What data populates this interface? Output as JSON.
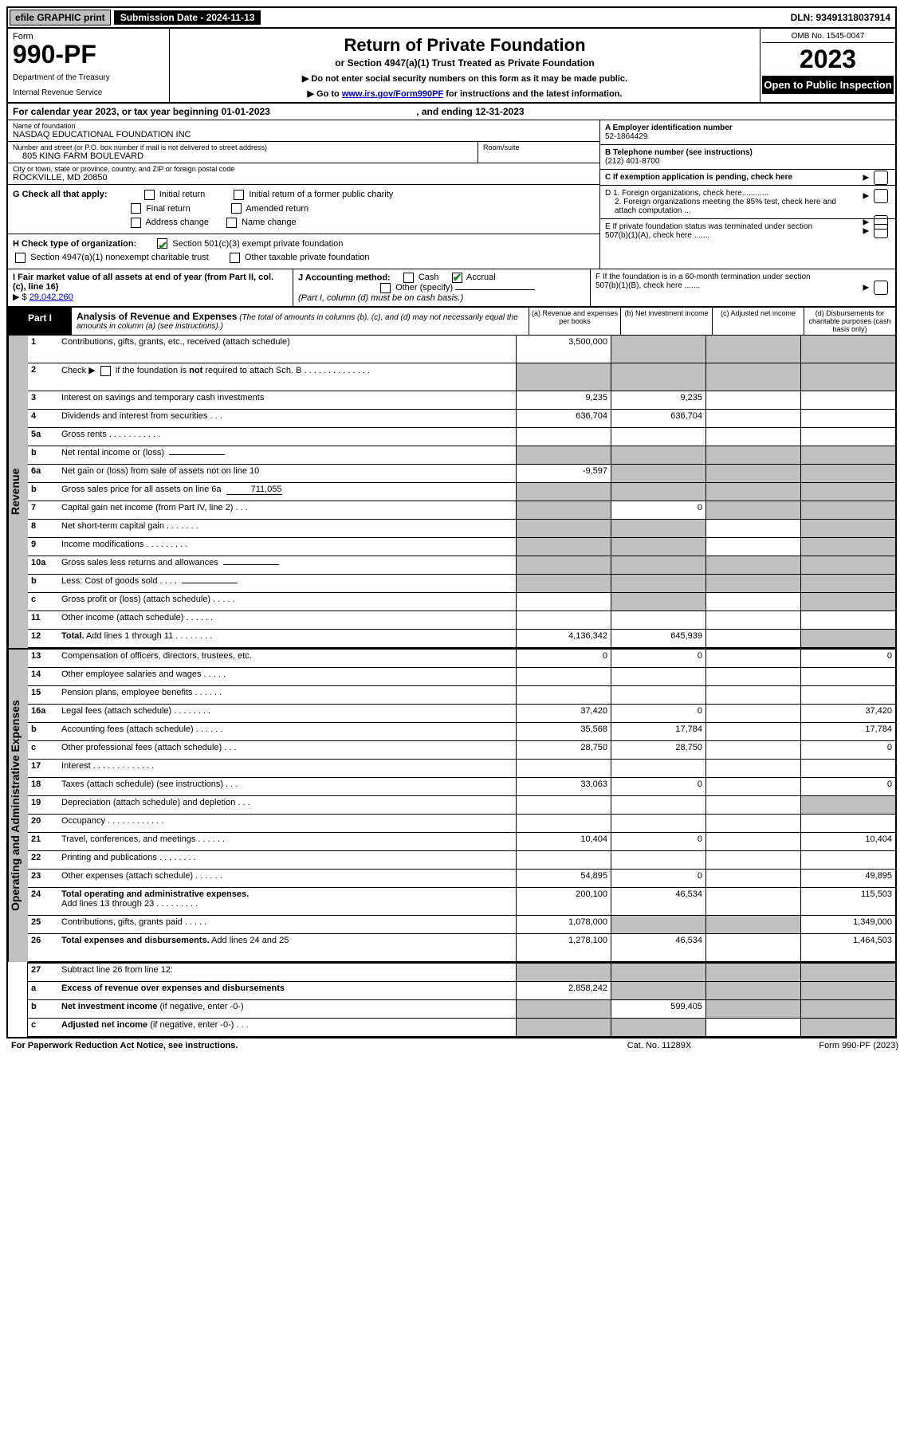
{
  "topbar": {
    "efile": "efile GRAPHIC print",
    "submission_label": "Submission Date - 2024-11-13",
    "dln": "DLN: 93491318037914"
  },
  "header": {
    "form_label": "Form",
    "form_number": "990-PF",
    "dept1": "Department of the Treasury",
    "dept2": "Internal Revenue Service",
    "title": "Return of Private Foundation",
    "subtitle": "or Section 4947(a)(1) Trust Treated as Private Foundation",
    "note1": "▶ Do not enter social security numbers on this form as it may be made public.",
    "note2_pre": "▶ Go to ",
    "note2_link": "www.irs.gov/Form990PF",
    "note2_post": " for instructions and the latest information.",
    "omb": "OMB No. 1545-0047",
    "year": "2023",
    "open": "Open to Public Inspection"
  },
  "calendar": {
    "pre": "For calendar year 2023, or tax year beginning ",
    "begin": "01-01-2023",
    "mid": ", and ending ",
    "end": "12-31-2023"
  },
  "info": {
    "name_label": "Name of foundation",
    "name": "NASDAQ EDUCATIONAL FOUNDATION INC",
    "addr_label": "Number and street (or P.O. box number if mail is not delivered to street address)",
    "addr": "805 KING FARM BOULEVARD",
    "room_label": "Room/suite",
    "room": "",
    "city_label": "City or town, state or province, country, and ZIP or foreign postal code",
    "city": "ROCKVILLE, MD  20850",
    "a_label": "A Employer identification number",
    "a_val": "52-1864429",
    "b_label": "B Telephone number (see instructions)",
    "b_val": "(212) 401-8700",
    "c_label": "C If exemption application is pending, check here",
    "d1": "D 1. Foreign organizations, check here............",
    "d2": "2. Foreign organizations meeting the 85% test, check here and attach computation ...",
    "e": "E  If private foundation status was terminated under section 507(b)(1)(A), check here .......",
    "f": "F  If the foundation is in a 60-month termination under section 507(b)(1)(B), check here .......",
    "g_label": "G Check all that apply:",
    "g_opts": [
      "Initial return",
      "Initial return of a former public charity",
      "Final return",
      "Amended return",
      "Address change",
      "Name change"
    ],
    "h_label": "H Check type of organization:",
    "h_opt1": "Section 501(c)(3) exempt private foundation",
    "h_opt2": "Section 4947(a)(1) nonexempt charitable trust",
    "h_opt3": "Other taxable private foundation",
    "i_label": "I Fair market value of all assets at end of year (from Part II, col. (c), line 16)",
    "i_val": "29,042,260",
    "j_label": "J Accounting method:",
    "j_cash": "Cash",
    "j_accrual": "Accrual",
    "j_other": "Other (specify)",
    "j_note": "(Part I, column (d) must be on cash basis.)"
  },
  "part1": {
    "tab": "Part I",
    "title": "Analysis of Revenue and Expenses",
    "title_note": " (The total of amounts in columns (b), (c), and (d) may not necessarily equal the amounts in column (a) (see instructions).)",
    "col_a": "(a)   Revenue and expenses per books",
    "col_b": "(b)   Net investment income",
    "col_c": "(c)   Adjusted net income",
    "col_d": "(d)   Disbursements for charitable purposes (cash basis only)"
  },
  "sections": {
    "revenue": "Revenue",
    "expenses": "Operating and Administrative Expenses"
  },
  "rows": {
    "r1": {
      "n": "1",
      "d": "",
      "a": "3,500,000",
      "b": "",
      "c": "",
      "shade_b": true,
      "shade_c": true,
      "shade_d": true
    },
    "r2": {
      "n": "2",
      "d_pre": "Check ▶ ",
      "d_post": " if the foundation is not required to attach Sch. B",
      "a": "",
      "b": "",
      "c": "",
      "d": "",
      "shade_a": true,
      "shade_b": true,
      "shade_c": true,
      "shade_d": true
    },
    "r3": {
      "n": "3",
      "d": "",
      "a": "9,235",
      "b": "9,235",
      "c": ""
    },
    "r4": {
      "n": "4",
      "d": "",
      "a": "636,704",
      "b": "636,704",
      "c": ""
    },
    "r5a": {
      "n": "5a",
      "d": "",
      "a": "",
      "b": "",
      "c": ""
    },
    "r5b": {
      "n": "b",
      "d": "",
      "a": "",
      "b": "",
      "c": "",
      "box": "",
      "shade_a": true,
      "shade_b": true,
      "shade_c": true,
      "shade_d": true
    },
    "r6a": {
      "n": "6a",
      "d": "",
      "a": "-9,597",
      "b": "",
      "c": "",
      "shade_b": true,
      "shade_c": true,
      "shade_d": true
    },
    "r6b": {
      "n": "b",
      "d": "",
      "box": "711,055",
      "a": "",
      "b": "",
      "c": "",
      "shade_a": true,
      "shade_b": true,
      "shade_c": true,
      "shade_d": true
    },
    "r7": {
      "n": "7",
      "d": "",
      "a": "",
      "b": "0",
      "c": "",
      "shade_a": true,
      "shade_c": true,
      "shade_d": true
    },
    "r8": {
      "n": "8",
      "d": "",
      "a": "",
      "b": "",
      "c": "",
      "shade_a": true,
      "shade_b": true,
      "shade_d": true
    },
    "r9": {
      "n": "9",
      "d": "",
      "a": "",
      "b": "",
      "c": "",
      "shade_a": true,
      "shade_b": true,
      "shade_d": true
    },
    "r10a": {
      "n": "10a",
      "d": "",
      "box": "",
      "a": "",
      "b": "",
      "c": "",
      "shade_a": true,
      "shade_b": true,
      "shade_c": true,
      "shade_d": true
    },
    "r10b": {
      "n": "b",
      "d": "",
      "box": "",
      "a": "",
      "b": "",
      "c": "",
      "shade_a": true,
      "shade_b": true,
      "shade_c": true,
      "shade_d": true
    },
    "r10c": {
      "n": "c",
      "d": "",
      "a": "",
      "b": "",
      "c": "",
      "shade_b": true,
      "shade_d": true
    },
    "r11": {
      "n": "11",
      "d": "",
      "a": "",
      "b": "",
      "c": ""
    },
    "r12": {
      "n": "12",
      "d": "",
      "a": "4,136,342",
      "b": "645,939",
      "c": "",
      "bold": true,
      "shade_d": true
    },
    "r13": {
      "n": "13",
      "d": "0",
      "a": "0",
      "b": "0",
      "c": ""
    },
    "r14": {
      "n": "14",
      "d": "",
      "a": "",
      "b": "",
      "c": ""
    },
    "r15": {
      "n": "15",
      "d": "",
      "a": "",
      "b": "",
      "c": ""
    },
    "r16a": {
      "n": "16a",
      "d": "37,420",
      "a": "37,420",
      "b": "0",
      "c": ""
    },
    "r16b": {
      "n": "b",
      "d": "17,784",
      "a": "35,568",
      "b": "17,784",
      "c": ""
    },
    "r16c": {
      "n": "c",
      "d": "0",
      "a": "28,750",
      "b": "28,750",
      "c": ""
    },
    "r17": {
      "n": "17",
      "d": "",
      "a": "",
      "b": "",
      "c": ""
    },
    "r18": {
      "n": "18",
      "d": "0",
      "a": "33,063",
      "b": "0",
      "c": ""
    },
    "r19": {
      "n": "19",
      "d": "",
      "a": "",
      "b": "",
      "c": "",
      "shade_d": true
    },
    "r20": {
      "n": "20",
      "d": "",
      "a": "",
      "b": "",
      "c": ""
    },
    "r21": {
      "n": "21",
      "d": "10,404",
      "a": "10,404",
      "b": "0",
      "c": ""
    },
    "r22": {
      "n": "22",
      "d": "",
      "a": "",
      "b": "",
      "c": ""
    },
    "r23": {
      "n": "23",
      "d": "49,895",
      "a": "54,895",
      "b": "0",
      "c": ""
    },
    "r24": {
      "n": "24",
      "d": "115,503",
      "a": "200,100",
      "b": "46,534",
      "c": "",
      "bold": true
    },
    "r25": {
      "n": "25",
      "d": "1,349,000",
      "a": "1,078,000",
      "b": "",
      "c": "",
      "shade_b": true,
      "shade_c": true
    },
    "r26": {
      "n": "26",
      "d": "1,464,503",
      "a": "1,278,100",
      "b": "46,534",
      "c": "",
      "bold": true
    },
    "r27": {
      "n": "27",
      "d": "",
      "a": "",
      "b": "",
      "c": "",
      "shade_a": true,
      "shade_b": true,
      "shade_c": true,
      "shade_d": true
    },
    "r27a": {
      "n": "a",
      "d": "",
      "a": "2,858,242",
      "b": "",
      "c": "",
      "bold": true,
      "shade_b": true,
      "shade_c": true,
      "shade_d": true
    },
    "r27b": {
      "n": "b",
      "d": "",
      "a": "",
      "b": "599,405",
      "c": "",
      "bold": true,
      "shade_a": true,
      "shade_c": true,
      "shade_d": true
    },
    "r27c": {
      "n": "c",
      "d": "",
      "a": "",
      "b": "",
      "c": "",
      "bold": true,
      "shade_a": true,
      "shade_b": true,
      "shade_d": true
    }
  },
  "footer": {
    "left": "For Paperwork Reduction Act Notice, see instructions.",
    "mid": "Cat. No. 11289X",
    "right": "Form 990-PF (2023)"
  }
}
